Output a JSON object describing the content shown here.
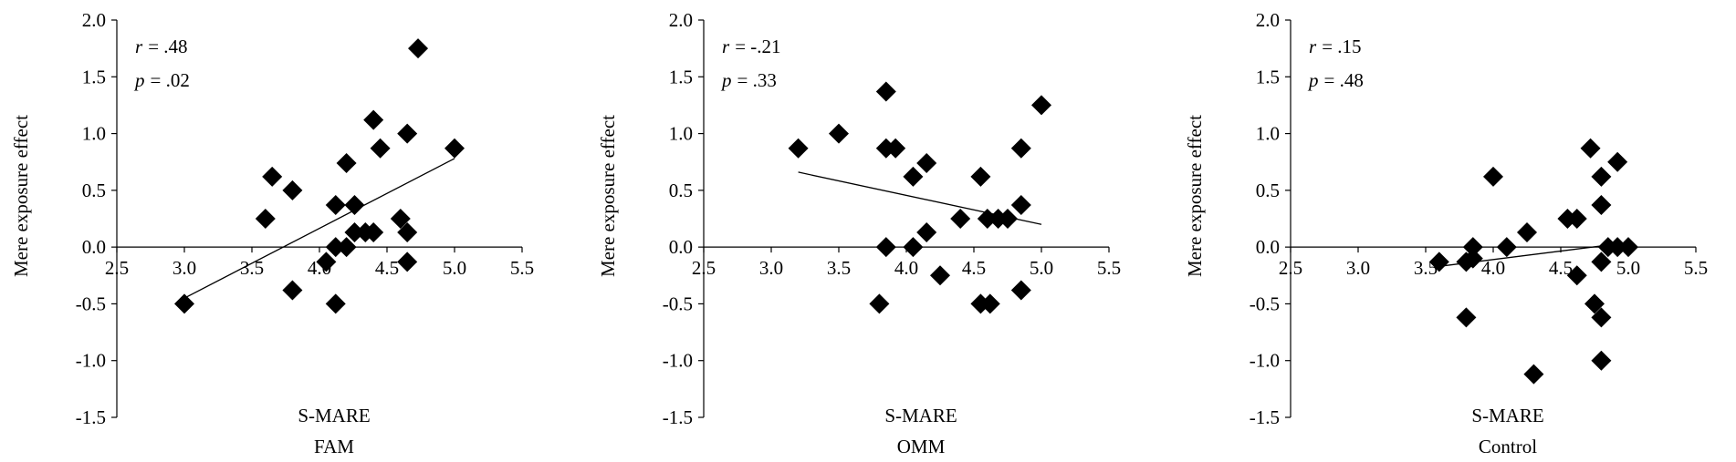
{
  "chart_data": [
    {
      "type": "scatter",
      "ylabel": "Mere exposure effect",
      "xlabel": [
        "S-MARE",
        "FAM"
      ],
      "annotations": [
        {
          "symbol": "r",
          "text": "= .48"
        },
        {
          "symbol": "p",
          "text": "= .02"
        }
      ],
      "color": "#000000",
      "x": [
        3.0,
        3.6,
        3.65,
        3.8,
        3.8,
        4.05,
        4.12,
        4.12,
        4.12,
        4.2,
        4.2,
        4.26,
        4.26,
        4.34,
        4.4,
        4.4,
        4.45,
        4.6,
        4.65,
        4.65,
        4.65,
        4.73,
        5.0
      ],
      "y": [
        -0.5,
        0.25,
        0.62,
        0.5,
        -0.38,
        -0.13,
        0.37,
        -0.5,
        0.0,
        0.74,
        0.0,
        0.37,
        0.13,
        0.13,
        0.13,
        1.12,
        0.87,
        0.25,
        1.0,
        0.13,
        -0.13,
        1.75,
        0.87
      ],
      "trendline": {
        "x": [
          3.0,
          5.0
        ],
        "y": [
          -0.45,
          0.78
        ]
      },
      "xlim": [
        2.5,
        5.5
      ],
      "ylim": [
        -1.5,
        2.0
      ],
      "xticks": [
        2.5,
        {
          "value": 3,
          "label": "3.0"
        },
        3.5,
        {
          "value": 4,
          "label": "4.0"
        },
        4.5,
        {
          "value": 5,
          "label": "5.0"
        },
        5.5
      ],
      "yticks": [
        -1.5,
        {
          "value": -1,
          "label": "-1.0"
        },
        -0.5,
        {
          "value": 0,
          "label": "0.0"
        },
        0.5,
        {
          "value": 1,
          "label": "1.0"
        },
        1.5,
        {
          "value": 2,
          "label": "2.0"
        }
      ]
    },
    {
      "type": "scatter",
      "ylabel": "Mere exposure effect",
      "xlabel": [
        "S-MARE",
        "OMM"
      ],
      "annotations": [
        {
          "symbol": "r",
          "text": "= -.21"
        },
        {
          "symbol": "p",
          "text": "= .33"
        }
      ],
      "color": "#000000",
      "x": [
        3.2,
        3.5,
        3.85,
        3.85,
        3.92,
        3.85,
        3.8,
        4.05,
        4.05,
        4.15,
        4.15,
        4.25,
        4.4,
        4.55,
        4.55,
        4.6,
        4.62,
        4.68,
        4.75,
        4.85,
        4.85,
        4.85,
        5.0
      ],
      "y": [
        0.87,
        1.0,
        1.37,
        0.87,
        0.87,
        0.0,
        -0.5,
        0.62,
        0.0,
        0.74,
        0.13,
        -0.25,
        0.25,
        0.62,
        -0.5,
        0.25,
        -0.5,
        0.25,
        0.25,
        0.37,
        0.87,
        -0.38,
        1.25
      ],
      "trendline": {
        "x": [
          3.2,
          5.0
        ],
        "y": [
          0.66,
          0.2
        ]
      },
      "xlim": [
        2.5,
        5.5
      ],
      "ylim": [
        -1.5,
        2.0
      ],
      "xticks": [
        2.5,
        {
          "value": 3,
          "label": "3.0"
        },
        3.5,
        {
          "value": 4,
          "label": "4.0"
        },
        4.5,
        {
          "value": 5,
          "label": "5.0"
        },
        5.5
      ],
      "yticks": [
        -1.5,
        {
          "value": -1,
          "label": "-1.0"
        },
        -0.5,
        {
          "value": 0,
          "label": "0.0"
        },
        0.5,
        {
          "value": 1,
          "label": "1.0"
        },
        1.5,
        {
          "value": 2,
          "label": "2.0"
        }
      ]
    },
    {
      "type": "scatter",
      "ylabel": "Mere exposure effect",
      "xlabel": [
        "S-MARE",
        "Control"
      ],
      "annotations": [
        {
          "symbol": "r",
          "text": "= .15"
        },
        {
          "symbol": "p",
          "text": "= .48"
        }
      ],
      "color": "#000000",
      "x": [
        3.6,
        3.8,
        3.8,
        3.85,
        3.85,
        4.0,
        4.1,
        4.25,
        4.3,
        4.55,
        4.62,
        4.62,
        4.72,
        4.75,
        4.8,
        4.8,
        4.8,
        4.8,
        4.8,
        4.85,
        4.92,
        4.92,
        5.0
      ],
      "y": [
        -0.13,
        -0.13,
        -0.62,
        0.0,
        -0.1,
        0.62,
        0.0,
        0.13,
        -1.12,
        0.25,
        0.25,
        -0.25,
        0.87,
        -0.5,
        0.62,
        0.37,
        -0.13,
        -0.62,
        -1.0,
        0.0,
        0.75,
        0.0,
        0.0
      ],
      "trendline": {
        "x": [
          3.6,
          5.0
        ],
        "y": [
          -0.17,
          0.04
        ]
      },
      "xlim": [
        2.5,
        5.5
      ],
      "ylim": [
        -1.5,
        2.0
      ],
      "xticks": [
        2.5,
        {
          "value": 3,
          "label": "3.0"
        },
        3.5,
        {
          "value": 4,
          "label": "4.0"
        },
        4.5,
        {
          "value": 5,
          "label": "5.0"
        },
        5.5
      ],
      "yticks": [
        -1.5,
        {
          "value": -1,
          "label": "-1.0"
        },
        -0.5,
        {
          "value": 0,
          "label": "0.0"
        },
        0.5,
        {
          "value": 1,
          "label": "1.0"
        },
        1.5,
        {
          "value": 2,
          "label": "2.0"
        }
      ]
    }
  ]
}
